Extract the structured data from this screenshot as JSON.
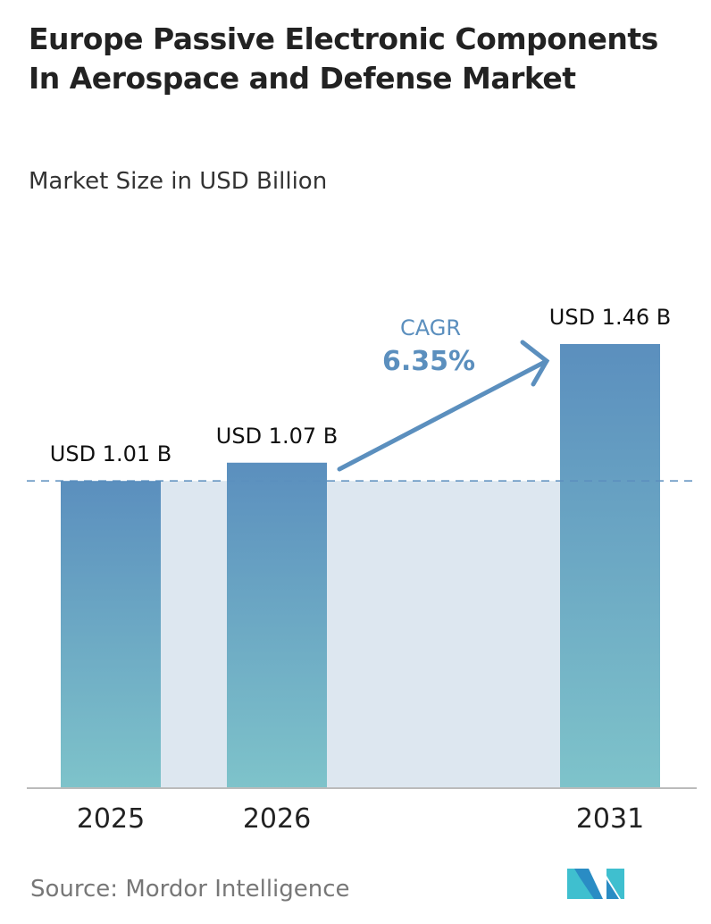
{
  "chart_data": {
    "type": "bar",
    "title": "Europe Passive Electronic Components In Aerospace and Defense Market",
    "subtitle": "Market Size in USD Billion",
    "categories": [
      "2025",
      "2026",
      "2031"
    ],
    "values": [
      1.01,
      1.07,
      1.46
    ],
    "data_labels": [
      "USD 1.01 B",
      "USD 1.07 B",
      "USD 1.46 B"
    ],
    "ylim": [
      0,
      1.46
    ],
    "grid": false,
    "reference_line_value": 1.01,
    "annotation": {
      "label": "CAGR",
      "value": "6.35%"
    },
    "xlabel": "",
    "ylabel": ""
  },
  "source": "Source:  Mordor Intelligence",
  "logo_text": "Mordor Intelligence",
  "colors": {
    "bar_top": "#5b8fbe",
    "bar_bottom": "#7ec3ca",
    "shade": "#dde7f0",
    "cagr": "#5b8fbe"
  }
}
